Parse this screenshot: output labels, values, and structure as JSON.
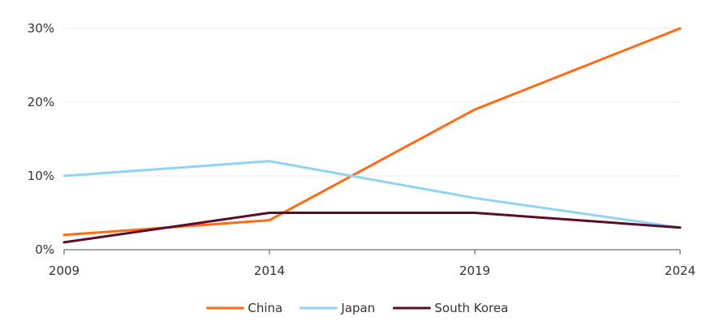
{
  "chart_data": {
    "type": "line",
    "title": "",
    "xlabel": "",
    "ylabel": "",
    "x": [
      2009,
      2014,
      2019,
      2024
    ],
    "x_tick_labels": [
      "2009",
      "2014",
      "2019",
      "2024"
    ],
    "ylim": [
      0,
      30
    ],
    "y_ticks": [
      0,
      10,
      20,
      30
    ],
    "y_tick_labels": [
      "0%",
      "10%",
      "20%",
      "30%"
    ],
    "grid": true,
    "legend_position": "bottom",
    "series": [
      {
        "name": "China",
        "color": "#ff6a13",
        "values": [
          2,
          4,
          19,
          30
        ]
      },
      {
        "name": "Japan",
        "color": "#8fd3f5",
        "values": [
          10,
          12,
          7,
          3
        ]
      },
      {
        "name": "South Korea",
        "color": "#5a0d2a",
        "values": [
          1,
          5,
          5,
          3
        ]
      }
    ]
  }
}
